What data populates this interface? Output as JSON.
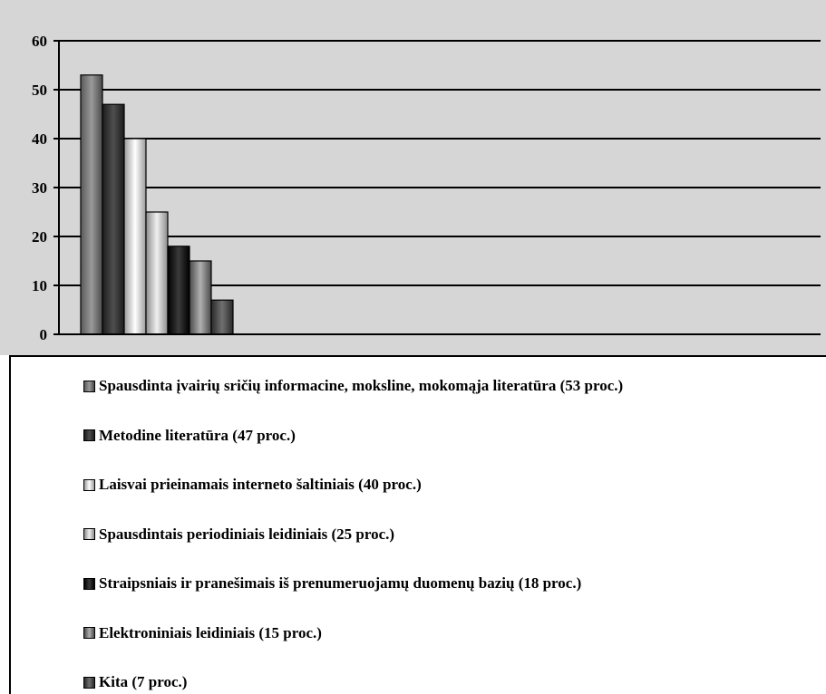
{
  "chart_data": {
    "type": "bar",
    "title": "",
    "xlabel": "",
    "ylabel": "",
    "ylim": [
      0,
      60
    ],
    "yticks": [
      0,
      10,
      20,
      30,
      40,
      50,
      60
    ],
    "grid": true,
    "legend_position": "bottom",
    "series": [
      {
        "name": "Spausdinta įvairių sričių informacine, moksline, mokomąja literatūra (53 proc.)",
        "value": 53,
        "color": "#6e6e6e",
        "shade": "medium-gradient"
      },
      {
        "name": "Metodine literatūra (47 proc.)",
        "value": 47,
        "color": "#3a3a3a",
        "shade": "dark-gradient"
      },
      {
        "name": "Laisvai prieinamais interneto šaltiniais (40 proc.)",
        "value": 40,
        "color": "#f2f2f2",
        "shade": "light-gradient"
      },
      {
        "name": "Spausdintais periodiniais leidiniais (25 proc.)",
        "value": 25,
        "color": "#dcdcdc",
        "shade": "light-gray-gradient"
      },
      {
        "name": "Straipsniais ir pranešimais iš prenumeruojamų duomenų bazių (18 proc.)",
        "value": 18,
        "color": "#1e1e1e",
        "shade": "black-gradient"
      },
      {
        "name": "Elektroniniais leidiniais (15 proc.)",
        "value": 15,
        "color": "#8a8a8a",
        "shade": "gray-gradient"
      },
      {
        "name": "Kita (7 proc.)",
        "value": 7,
        "color": "#505050",
        "shade": "dark-gray-gradient"
      }
    ]
  }
}
